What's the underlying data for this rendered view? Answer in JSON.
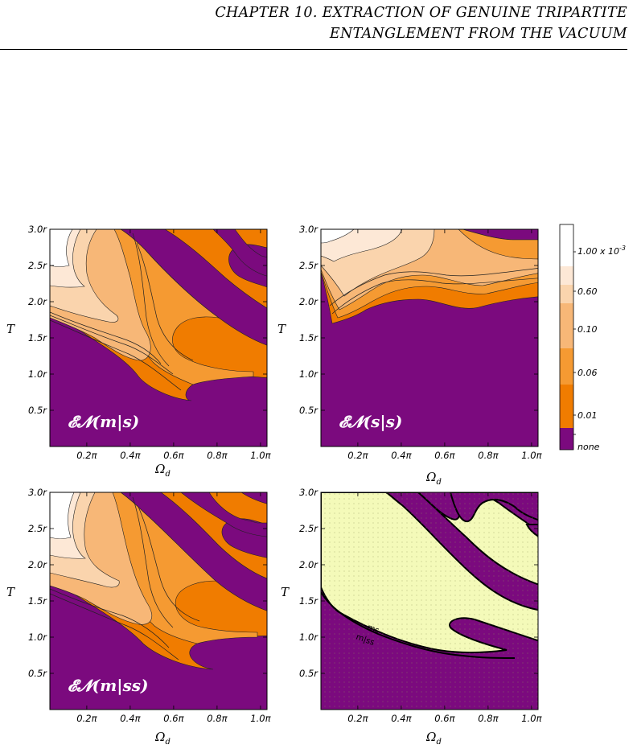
{
  "header": {
    "line1": "CHAPTER 10.  EXTRACTION OF GENUINE TRIPARTITE",
    "line2": "ENTANGLEMENT FROM THE VACUUM"
  },
  "colors": {
    "none": "#7b0a7e",
    "level_0_01": "#f07c00",
    "level_0_06": "#f59a32",
    "level_0_10": "#f7b777",
    "level_0_60": "#fad4ad",
    "level_1e3": "#fde8d6",
    "top": "#ffffff",
    "ms_region": "#f4fab9"
  },
  "chart_data": [
    {
      "type": "heatmap",
      "name": "top-left",
      "label": "𝓔𝓝(m|s)",
      "xlabel": "Ω",
      "xlabel_sub": "d",
      "ylabel": "T",
      "x_ticks": [
        "0.2π",
        "0.4π",
        "0.6π",
        "0.8π",
        "1.0π"
      ],
      "y_ticks": [
        "0.5r",
        "1.0r",
        "1.5r",
        "2.0r",
        "2.5r",
        "3.0r"
      ],
      "x_tick_values": [
        0.2,
        0.4,
        0.6,
        0.8,
        1.0
      ],
      "y_tick_values": [
        0.5,
        1.0,
        1.5,
        2.0,
        2.5,
        3.0
      ],
      "xlim": [
        0.03,
        1.03
      ],
      "ylim": [
        0.0,
        3.0
      ]
    },
    {
      "type": "heatmap",
      "name": "top-right",
      "label": "𝓔𝓝(s|s)",
      "xlabel": "Ω",
      "xlabel_sub": "d",
      "ylabel": "T",
      "x_ticks": [
        "0.2π",
        "0.4π",
        "0.6π",
        "0.8π",
        "1.0π"
      ],
      "y_ticks": [
        "0.5r",
        "1.0r",
        "1.5r",
        "2.0r",
        "2.5r",
        "3.0r"
      ],
      "x_tick_values": [
        0.2,
        0.4,
        0.6,
        0.8,
        1.0
      ],
      "y_tick_values": [
        0.5,
        1.0,
        1.5,
        2.0,
        2.5,
        3.0
      ],
      "xlim": [
        0.03,
        1.03
      ],
      "ylim": [
        0.0,
        3.0
      ]
    },
    {
      "type": "heatmap",
      "name": "bottom-left",
      "label": "𝓔𝓝(m|ss)",
      "xlabel": "Ω",
      "xlabel_sub": "d",
      "ylabel": "T",
      "x_ticks": [
        "0.2π",
        "0.4π",
        "0.6π",
        "0.8π",
        "1.0π"
      ],
      "y_ticks": [
        "0.5r",
        "1.0r",
        "1.5r",
        "2.0r",
        "2.5r",
        "3.0r"
      ],
      "x_tick_values": [
        0.2,
        0.4,
        0.6,
        0.8,
        1.0
      ],
      "y_tick_values": [
        0.5,
        1.0,
        1.5,
        2.0,
        2.5,
        3.0
      ],
      "xlim": [
        0.03,
        1.03
      ],
      "ylim": [
        0.0,
        3.0
      ]
    },
    {
      "type": "heatmap",
      "name": "bottom-right",
      "label": "",
      "xlabel": "Ω",
      "xlabel_sub": "d",
      "ylabel": "T",
      "x_ticks": [
        "0.2π",
        "0.4π",
        "0.6π",
        "0.8π",
        "1.0π"
      ],
      "y_ticks": [
        "0.5r",
        "1.0r",
        "1.5r",
        "2.0r",
        "2.5r",
        "3.0r"
      ],
      "x_tick_values": [
        0.2,
        0.4,
        0.6,
        0.8,
        1.0
      ],
      "y_tick_values": [
        0.5,
        1.0,
        1.5,
        2.0,
        2.5,
        3.0
      ],
      "xlim": [
        0.03,
        1.03
      ],
      "ylim": [
        0.0,
        3.0
      ],
      "annotations": [
        "ms",
        "m|ss"
      ]
    }
  ],
  "colorbar": {
    "labels": [
      "1.00 x 10",
      "0.60",
      "0.10",
      "0.06",
      "0.01",
      "none"
    ],
    "exponent": "-3"
  }
}
